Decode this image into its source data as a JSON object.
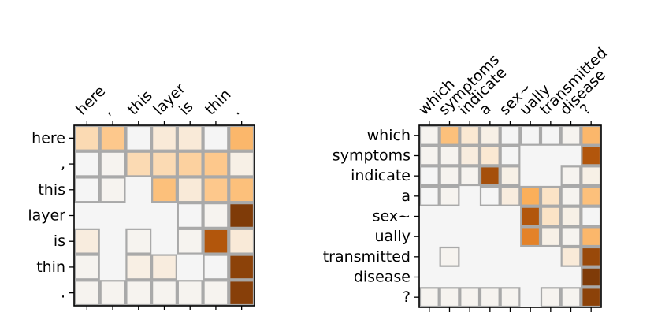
{
  "chart_data": [
    {
      "type": "heatmap",
      "title": "",
      "x_labels": [
        "here",
        ",",
        "this",
        "layer",
        "is",
        "thin",
        "."
      ],
      "y_labels": [
        "here",
        ",",
        "this",
        "layer",
        "is",
        "thin",
        "."
      ],
      "colormap": "white-to-brown (0 = #f5f5f5, 1 = #7f3b08)",
      "grid": true,
      "values": [
        [
          0.2,
          0.3,
          0.0,
          0.1,
          0.1,
          0.0,
          0.4
        ],
        [
          0.0,
          0.02,
          0.2,
          0.2,
          0.25,
          0.3,
          0.05
        ],
        [
          0.0,
          0.02,
          0.0,
          0.35,
          0.1,
          0.3,
          0.35
        ],
        [
          0.0,
          0.0,
          0.0,
          0.0,
          0.0,
          0.02,
          1.0
        ],
        [
          0.08,
          0.0,
          0.02,
          0.0,
          0.02,
          0.8,
          0.1
        ],
        [
          0.02,
          0.0,
          0.06,
          0.08,
          0.0,
          0.0,
          0.95
        ],
        [
          0.02,
          0.02,
          0.02,
          0.02,
          0.02,
          0.02,
          0.97
        ]
      ],
      "boxed": [
        [
          1,
          1,
          1,
          1,
          1,
          1,
          1
        ],
        [
          1,
          1,
          1,
          1,
          1,
          1,
          1
        ],
        [
          1,
          1,
          0,
          1,
          1,
          1,
          1
        ],
        [
          0,
          0,
          0,
          0,
          1,
          1,
          1
        ],
        [
          1,
          0,
          1,
          0,
          1,
          1,
          1
        ],
        [
          1,
          0,
          1,
          1,
          0,
          1,
          1
        ],
        [
          1,
          1,
          1,
          1,
          1,
          1,
          1
        ]
      ]
    },
    {
      "type": "heatmap",
      "title": "",
      "x_labels": [
        "which",
        "symptoms",
        "indicate",
        "a",
        "sex~",
        "ually",
        "transmitted",
        "disease",
        "?"
      ],
      "y_labels": [
        "which",
        "symptoms",
        "indicate",
        "a",
        "sex~",
        "ually",
        "transmitted",
        "disease",
        "?"
      ],
      "colormap": "white-to-brown (0 = #f5f5f5, 1 = #7f3b08)",
      "grid": true,
      "values": [
        [
          0.02,
          0.35,
          0.12,
          0.05,
          0.0,
          0.0,
          0.0,
          0.02,
          0.4
        ],
        [
          0.02,
          0.02,
          0.08,
          0.12,
          0.0,
          0.0,
          0.0,
          0.0,
          0.8
        ],
        [
          0.0,
          0.02,
          0.02,
          0.85,
          0.05,
          0.0,
          0.0,
          0.02,
          0.05
        ],
        [
          0.0,
          0.02,
          0.0,
          0.0,
          0.08,
          0.45,
          0.15,
          0.02,
          0.35
        ],
        [
          0.0,
          0.0,
          0.0,
          0.0,
          0.0,
          0.8,
          0.15,
          0.05,
          0.0
        ],
        [
          0.0,
          0.0,
          0.0,
          0.0,
          0.0,
          0.6,
          0.05,
          0.02,
          0.4
        ],
        [
          0.0,
          0.02,
          0.0,
          0.0,
          0.0,
          0.0,
          0.0,
          0.1,
          0.9
        ],
        [
          0.0,
          0.0,
          0.0,
          0.0,
          0.0,
          0.0,
          0.0,
          0.0,
          1.0
        ],
        [
          0.02,
          0.02,
          0.02,
          0.02,
          0.02,
          0.0,
          0.02,
          0.02,
          0.95
        ]
      ],
      "boxed": [
        [
          1,
          1,
          1,
          1,
          1,
          1,
          1,
          1,
          1
        ],
        [
          1,
          1,
          1,
          1,
          1,
          0,
          0,
          0,
          1
        ],
        [
          1,
          1,
          1,
          1,
          1,
          0,
          0,
          1,
          1
        ],
        [
          1,
          1,
          0,
          1,
          1,
          1,
          1,
          1,
          1
        ],
        [
          0,
          0,
          0,
          0,
          0,
          1,
          1,
          1,
          1
        ],
        [
          0,
          0,
          0,
          0,
          0,
          1,
          1,
          1,
          1
        ],
        [
          0,
          1,
          0,
          0,
          0,
          0,
          0,
          1,
          1
        ],
        [
          0,
          0,
          0,
          0,
          0,
          0,
          0,
          0,
          1
        ],
        [
          1,
          1,
          1,
          1,
          1,
          0,
          1,
          1,
          1
        ]
      ]
    }
  ]
}
